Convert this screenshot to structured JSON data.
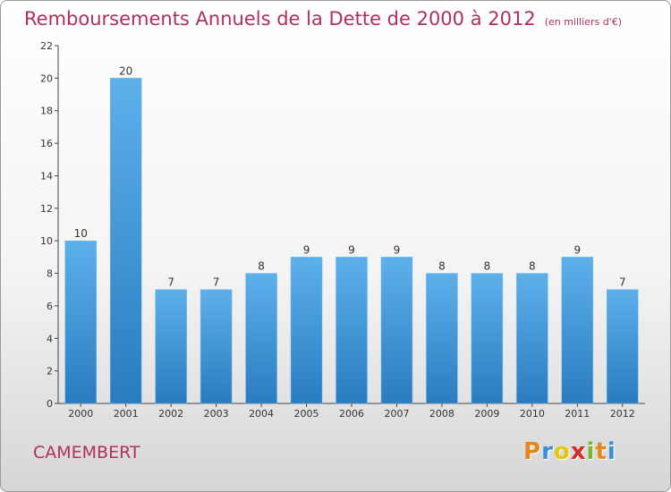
{
  "title": "Remboursements Annuels de la Dette de 2000 à 2012",
  "subtitle": "(en milliers d'€)",
  "commune": "CAMEMBERT",
  "logo": {
    "letters": [
      "P",
      "r",
      "o",
      "x",
      "i",
      "t",
      "i"
    ],
    "colors": [
      "#e08a1e",
      "#3a8fd6",
      "#e6c414",
      "#d62b2b",
      "#7cb829",
      "#e08a1e",
      "#3a8fd6"
    ]
  },
  "colors": {
    "bar_top": "#5db0ea",
    "bar_bottom": "#2a7cc0",
    "title": "#b0305a"
  },
  "chart_data": {
    "type": "bar",
    "categories": [
      "2000",
      "2001",
      "2002",
      "2003",
      "2004",
      "2005",
      "2006",
      "2007",
      "2008",
      "2009",
      "2010",
      "2011",
      "2012"
    ],
    "values": [
      10,
      20,
      7,
      7,
      8,
      9,
      9,
      9,
      8,
      8,
      8,
      9,
      7
    ],
    "y_ticks": [
      "0",
      "2",
      "4",
      "6",
      "8",
      "10",
      "12",
      "14",
      "16",
      "18",
      "20",
      "22"
    ],
    "ylim": [
      0,
      22
    ],
    "grid": false
  }
}
